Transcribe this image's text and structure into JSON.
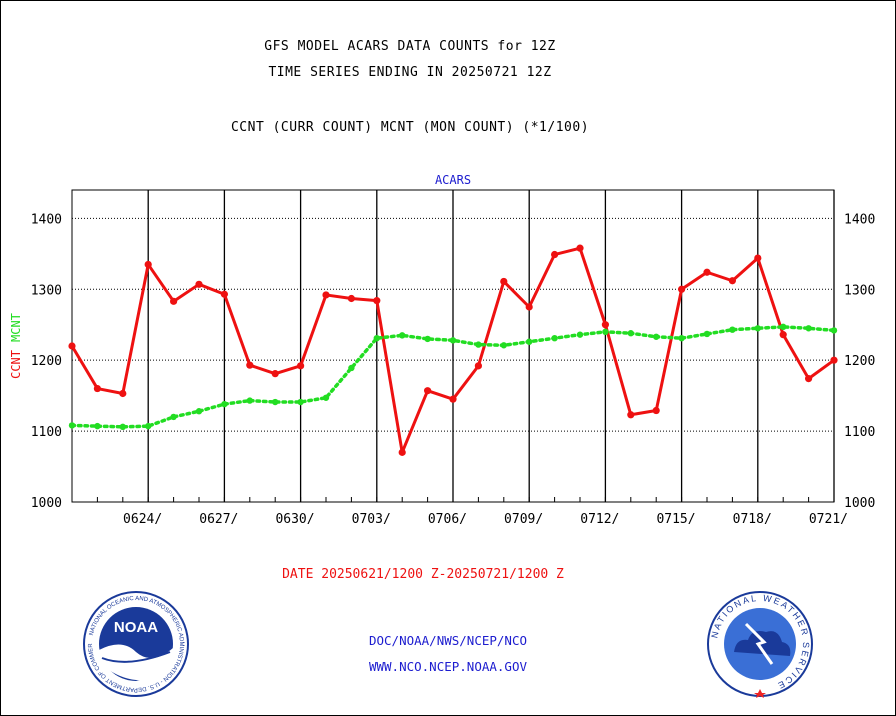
{
  "titles": {
    "line1": "GFS MODEL ACARS DATA COUNTS for 12Z",
    "line2": "TIME SERIES ENDING IN 20250721 12Z",
    "line3": "CCNT (CURR COUNT) MCNT (MON COUNT) (*1/100)"
  },
  "chart_data": {
    "type": "line",
    "title": "ACARS",
    "ylabel_ccnt": "CCNT",
    "ylabel_mcnt": "MCNT",
    "xlabel": "DATE 20250621/1200 Z-20250721/1200 Z",
    "ylim": [
      1000,
      1440
    ],
    "yticks": [
      1000,
      1100,
      1200,
      1300,
      1400
    ],
    "ytick_labels": [
      "1000",
      "1100",
      "1200",
      "1300",
      "1400"
    ],
    "xlim": [
      0,
      30
    ],
    "xticks": [
      3,
      6,
      9,
      12,
      15,
      18,
      21,
      24,
      27,
      30
    ],
    "xtick_labels": [
      "0624/",
      "0627/",
      "0630/",
      "0703/",
      "0706/",
      "0709/",
      "0712/",
      "0715/",
      "0718/",
      "0721/"
    ],
    "grid": true,
    "series": [
      {
        "name": "CCNT",
        "color": "#ee1111",
        "style": "solid",
        "x": [
          0,
          1,
          2,
          3,
          4,
          5,
          6,
          7,
          8,
          9,
          10,
          11,
          12,
          13,
          14,
          15,
          16,
          17,
          18,
          19,
          20,
          21,
          22,
          23,
          24,
          25,
          26,
          27,
          28,
          29,
          30
        ],
        "values": [
          1220,
          1160,
          1153,
          1335,
          1283,
          1307,
          1293,
          1193,
          1181,
          1192,
          1292,
          1287,
          1284,
          1070,
          1157,
          1145,
          1192,
          1311,
          1275,
          1349,
          1358,
          1250,
          1123,
          1129,
          1300,
          1324,
          1312,
          1344,
          1236,
          1174,
          1200
        ]
      },
      {
        "name": "MCNT",
        "color": "#22dd22",
        "style": "dotted",
        "x": [
          0,
          1,
          2,
          3,
          4,
          5,
          6,
          7,
          8,
          9,
          10,
          11,
          12,
          13,
          14,
          15,
          16,
          17,
          18,
          19,
          20,
          21,
          22,
          23,
          24,
          25,
          26,
          27,
          28,
          29,
          30
        ],
        "values": [
          1108,
          1107,
          1106,
          1107,
          1120,
          1128,
          1138,
          1143,
          1141,
          1141,
          1147,
          1189,
          1231,
          1235,
          1230,
          1228,
          1222,
          1221,
          1226,
          1231,
          1236,
          1240,
          1238,
          1233,
          1231,
          1237,
          1243,
          1245,
          1247,
          1245,
          1242
        ]
      }
    ]
  },
  "footer": {
    "credit1": "DOC/NOAA/NWS/NCEP/NCO",
    "credit2": "WWW.NCO.NCEP.NOAA.GOV",
    "noaa_logo_text": "NOAA",
    "noaa_ring_text": "NATIONAL OCEANIC AND ATMOSPHERIC ADMINISTRATION - U.S. DEPARTMENT OF COMMERCE",
    "nws_ring_text": "NATIONAL WEATHER SERVICE"
  },
  "colors": {
    "ccnt": "#ee1111",
    "mcnt": "#22dd22",
    "title_blue": "#1c1ccf",
    "noaa_blue": "#1a3a9a",
    "nws_blue": "#3a6fd6"
  }
}
